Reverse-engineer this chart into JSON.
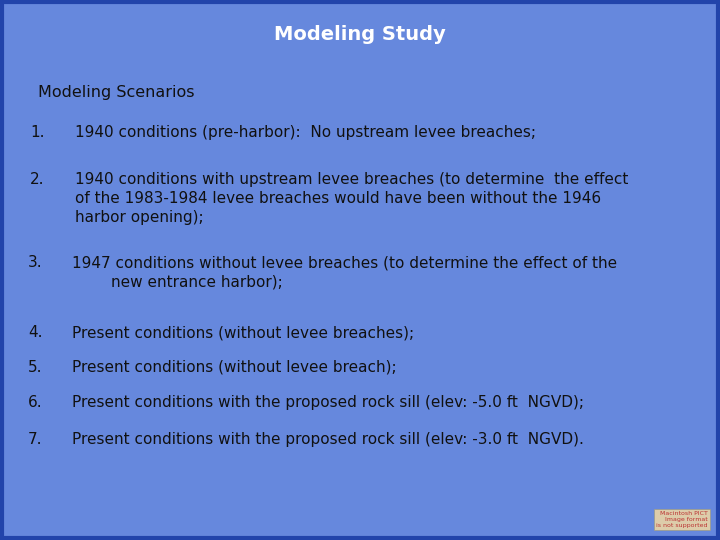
{
  "title": "Modeling Study",
  "title_color": "#ffffff",
  "title_fontsize": 14,
  "bg_color": "#6688dd",
  "text_color": "#111111",
  "heading": "Modeling Scenarios",
  "heading_fontsize": 11.5,
  "items": [
    {
      "number": "1.",
      "indent": 0.11,
      "text": "1940 conditions (pre-harbor):  No upstream levee breaches;"
    },
    {
      "number": "2.",
      "indent": 0.11,
      "text": "1940 conditions with upstream levee breaches (to determine  the effect\nof the 1983-1984 levee breaches would have been without the 1946\nharbor opening);"
    },
    {
      "number": "3.",
      "indent": 0.1,
      "text": "1947 conditions without levee breaches (to determine the effect of the\n        new entrance harbor);"
    },
    {
      "number": "4.",
      "indent": 0.1,
      "text": "Present conditions (without levee breaches);"
    },
    {
      "number": "5.",
      "indent": 0.1,
      "text": "Present conditions (without levee breach);"
    },
    {
      "number": "6.",
      "indent": 0.1,
      "text": "Present conditions with the proposed rock sill (elev: -5.0 ft  NGVD);"
    },
    {
      "number": "7.",
      "indent": 0.1,
      "text": "Present conditions with the proposed rock sill (elev: -3.0 ft  NGVD)."
    }
  ],
  "item_fontsize": 11,
  "border_color": "#2244aa",
  "watermark_bg": "#ddccaa",
  "watermark_color": "#bb3333",
  "watermark_text": "Macintosh PICT\nImage format\nis not supported"
}
